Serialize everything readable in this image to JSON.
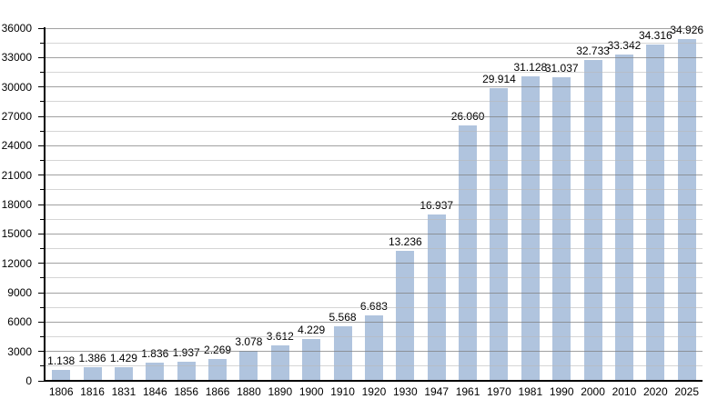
{
  "chart_data": {
    "type": "bar",
    "title": "",
    "categories": [
      "1806",
      "1816",
      "1831",
      "1846",
      "1856",
      "1866",
      "1880",
      "1890",
      "1900",
      "1910",
      "1920",
      "1930",
      "1947",
      "1961",
      "1970",
      "1981",
      "1990",
      "2000",
      "2010",
      "2020",
      "2025"
    ],
    "values": [
      1138,
      1386,
      1429,
      1836,
      1937,
      2269,
      3078,
      3612,
      4229,
      5568,
      6683,
      13236,
      16937,
      26060,
      29914,
      31128,
      31037,
      32733,
      33342,
      34316,
      34926
    ],
    "value_labels": [
      "1.138",
      "1.386",
      "1.429",
      "1.836",
      "1.937",
      "2.269",
      "3.078",
      "3.612",
      "4.229",
      "5.568",
      "6.683",
      "13.236",
      "16.937",
      "26.060",
      "29.914",
      "31.128",
      "31.037",
      "32.733",
      "33.342",
      "34.316",
      "34.926"
    ],
    "xlabel": "",
    "ylabel": "",
    "ylim": [
      0,
      36000
    ],
    "y_major_step": 3000,
    "y_minor_step": 1500,
    "y_tick_labels": [
      "0",
      "3000",
      "6000",
      "9000",
      "12000",
      "15000",
      "18000",
      "21000",
      "24000",
      "27000",
      "30000",
      "33000",
      "36000"
    ],
    "grid": "on",
    "legend_position": "none",
    "colors": {
      "bar": "#b0c4de",
      "grid_major": "#999999",
      "grid_minor": "#dddddd",
      "axis": "#000000",
      "text": "#000000",
      "background": "#ffffff"
    }
  }
}
